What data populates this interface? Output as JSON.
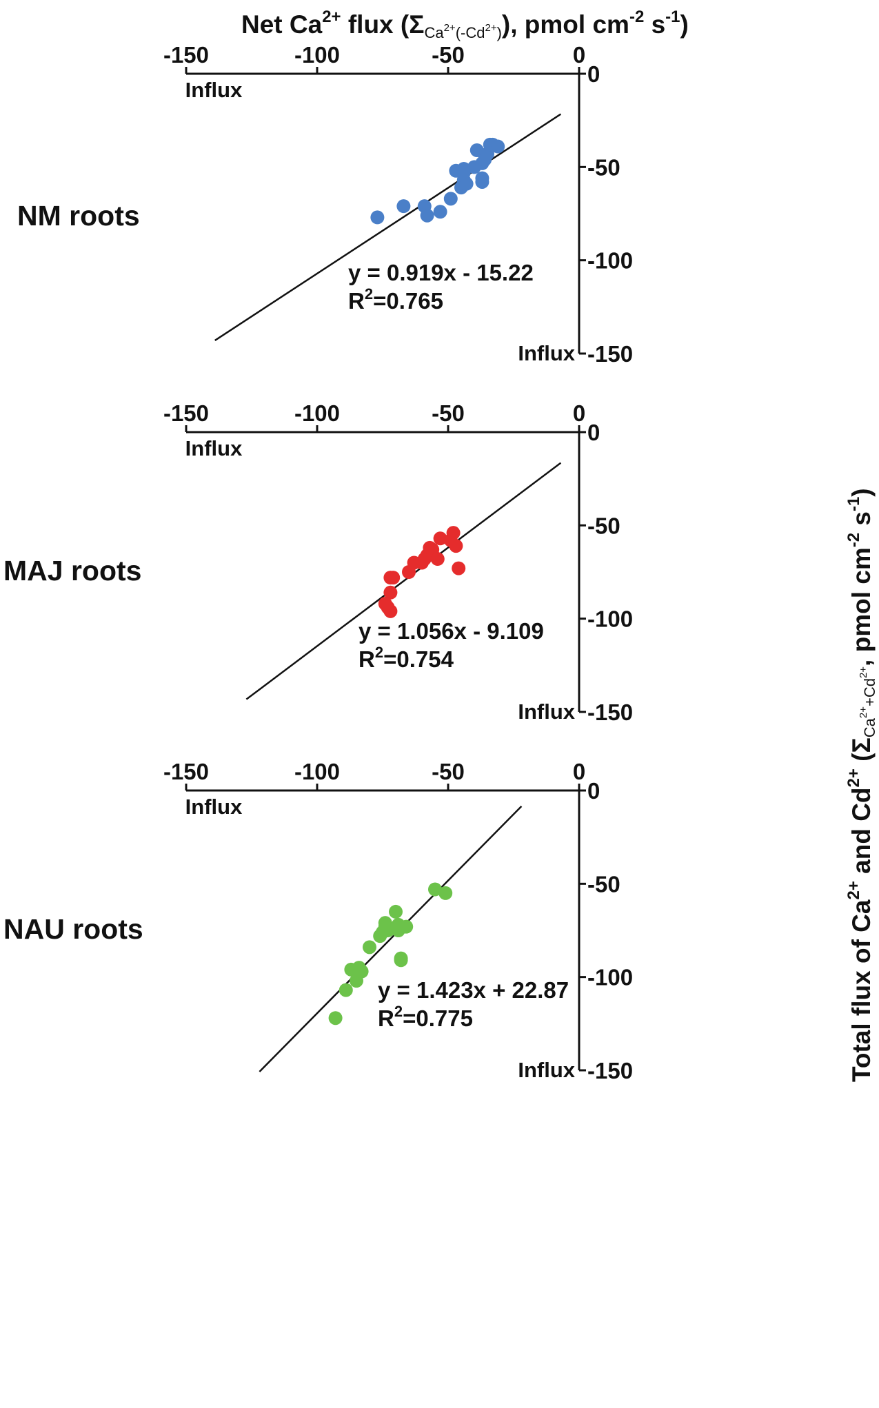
{
  "x_axis_title": {
    "prefix": "Net Ca",
    "sup1": "2+",
    "mid": " flux (",
    "sigma": "Σ",
    "sub": "Ca",
    "subsup1": "2+",
    "sub2": "(-Cd",
    "subsup2": "2+",
    "sub3": ")",
    "suffix": "), pmol cm",
    "sup2": "-2",
    "suffix2": " s",
    "sup3": "-1",
    "suffix3": ")"
  },
  "y_axis_title": {
    "prefix": "Total flux of Ca",
    "sup1": "2+",
    "mid": " and Cd",
    "sup2": "2+",
    "paren": " (",
    "sigma": "Σ",
    "sub": "Ca",
    "subsup1": "2+",
    "sub2": "+Cd",
    "subsup2": "2+",
    "suffix": ", pmol cm",
    "sup3": "-2",
    "suffix2": " s",
    "sup4": "-1",
    "suffix3": ")"
  },
  "influx_label": "Influx",
  "chart_data": [
    {
      "type": "scatter",
      "row_label": "NM roots",
      "color": "#4a7fc8",
      "xlim": [
        -150,
        0
      ],
      "ylim": [
        -150,
        0
      ],
      "x_ticks": [
        -150,
        -100,
        -50,
        0
      ],
      "y_ticks": [
        0,
        -50,
        -100,
        -150
      ],
      "x_tick_labels": [
        "-150",
        "-100",
        "-50",
        "0"
      ],
      "y_tick_labels": [
        "0",
        "-50",
        "-100",
        "-150"
      ],
      "x": [
        -77,
        -67,
        -59,
        -58,
        -53,
        -49,
        -47,
        -45,
        -44,
        -44,
        -44,
        -43,
        -40,
        -39,
        -37,
        -37,
        -37,
        -36,
        -35,
        -34,
        -33,
        -31
      ],
      "y": [
        -77,
        -71,
        -71,
        -76,
        -74,
        -67,
        -52,
        -61,
        -51,
        -57,
        -53,
        -59,
        -50,
        -41,
        -48,
        -56,
        -58,
        -46,
        -43,
        -38,
        -38,
        -39
      ],
      "fit": {
        "slope": 0.919,
        "intercept": -15.22,
        "x_range": [
          -139,
          -7
        ]
      },
      "equation": "y = 0.919x - 15.22",
      "r2_prefix": "R",
      "r2_sup": "2",
      "r2_value": "=0.765"
    },
    {
      "type": "scatter",
      "row_label": "MAJ roots",
      "color": "#e52c2c",
      "xlim": [
        -150,
        0
      ],
      "ylim": [
        -150,
        0
      ],
      "x_ticks": [
        -150,
        -100,
        -50,
        0
      ],
      "y_ticks": [
        0,
        -50,
        -100,
        -150
      ],
      "x_tick_labels": [
        "-150",
        "-100",
        "-50",
        "0"
      ],
      "y_tick_labels": [
        "0",
        "-50",
        "-100",
        "-150"
      ],
      "x": [
        -74,
        -73,
        -72,
        -72,
        -72,
        -71,
        -65,
        -63,
        -60,
        -59,
        -58,
        -57,
        -56,
        -54,
        -53,
        -49,
        -48,
        -47,
        -46
      ],
      "y": [
        -92,
        -94,
        -78,
        -86,
        -96,
        -78,
        -75,
        -70,
        -70,
        -68,
        -66,
        -62,
        -63,
        -68,
        -57,
        -58,
        -54,
        -61,
        -73
      ],
      "fit": {
        "slope": 1.056,
        "intercept": -9.109,
        "x_range": [
          -127,
          -7
        ]
      },
      "equation": "y = 1.056x - 9.109",
      "r2_prefix": "R",
      "r2_sup": "2",
      "r2_value": "=0.754"
    },
    {
      "type": "scatter",
      "row_label": "NAU roots",
      "color": "#6cc24a",
      "xlim": [
        -150,
        0
      ],
      "ylim": [
        -150,
        0
      ],
      "x_ticks": [
        -150,
        -100,
        -50,
        0
      ],
      "y_ticks": [
        0,
        -50,
        -100,
        -150
      ],
      "x_tick_labels": [
        "-150",
        "-100",
        "-50",
        "0"
      ],
      "y_tick_labels": [
        "0",
        "-50",
        "-100",
        "-150"
      ],
      "x": [
        -93,
        -89,
        -87,
        -85,
        -84,
        -83,
        -80,
        -76,
        -75,
        -74,
        -74,
        -73,
        -70,
        -69,
        -69,
        -68,
        -68,
        -66,
        -55,
        -51
      ],
      "y": [
        -122,
        -107,
        -96,
        -102,
        -95,
        -97,
        -84,
        -78,
        -76,
        -71,
        -73,
        -75,
        -65,
        -75,
        -72,
        -91,
        -90,
        -73,
        -53,
        -55
      ],
      "fit": {
        "slope": 1.423,
        "intercept": 22.87,
        "x_range": [
          -122,
          -22
        ]
      },
      "equation": "y = 1.423x + 22.87",
      "r2_prefix": "R",
      "r2_sup": "2",
      "r2_value": "=0.775"
    }
  ]
}
